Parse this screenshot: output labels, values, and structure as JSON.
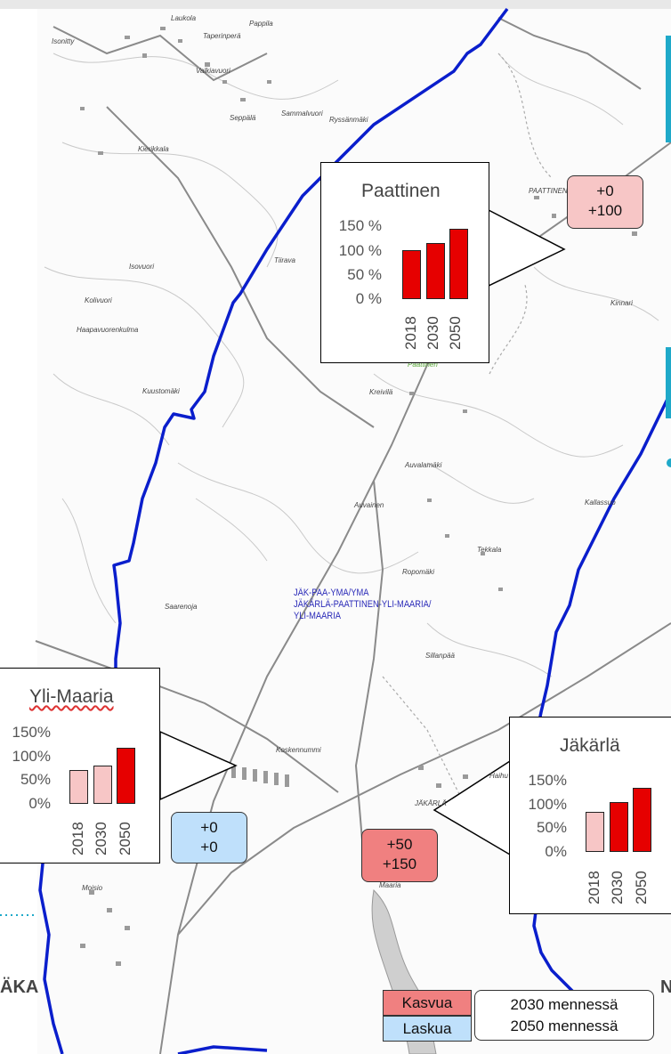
{
  "map": {
    "area_label": "JÄK-PAA-YMA/YMA\nJÄKÄRLÄ-PAATTINEN-YLI-MAARIA/\nYLI-MAARIA",
    "place_names": [
      "Laukola",
      "Taperinperä",
      "Pappila",
      "Isonitty",
      "Valkiavuori",
      "Seppälä",
      "Sammalvuori",
      "Ryssänmäki",
      "Kierikkala",
      "Tiirava",
      "Isovuori",
      "Kolivuori",
      "Haapavuorenkulma",
      "Kuustomäki",
      "Kreivilä",
      "Auvalamäki",
      "Auvainen",
      "Ropomäki",
      "Tekkala",
      "Kallassuo",
      "Saarenoja",
      "Sillanpää",
      "Koskennummi",
      "Maaria",
      "Moisio",
      "Haihu",
      "Kinnari",
      "PAATTINEN",
      "JÄKÄRLÄ",
      "Paattinen"
    ],
    "edge_left": "ÄKA",
    "edge_right": "N"
  },
  "callouts": [
    {
      "name": "Paattinen",
      "yticks": [
        "150 %",
        "100 %",
        "50 %",
        "0 %"
      ],
      "chart_data": {
        "type": "bar",
        "title": "Paattinen",
        "categories": [
          "2018",
          "2030",
          "2050"
        ],
        "values": [
          100,
          116,
          144
        ],
        "ylim": [
          0,
          150
        ],
        "colors": [
          "#e60000",
          "#e60000",
          "#e60000"
        ]
      },
      "change": {
        "line1": "+0",
        "line2": "+100",
        "color": "#f7c6c6"
      }
    },
    {
      "name": "Yli-Maaria",
      "yticks": [
        "150%",
        "100%",
        "50%",
        "0%"
      ],
      "chart_data": {
        "type": "bar",
        "title": "Yli-Maaria",
        "categories": [
          "2018",
          "2030",
          "2050"
        ],
        "values": [
          70,
          78,
          116
        ],
        "ylim": [
          0,
          150
        ],
        "colors": [
          "#f7c6c6",
          "#f7c6c6",
          "#e60000"
        ]
      },
      "change": {
        "line1": "+0",
        "line2": "+0",
        "color": "#bfe0fb"
      }
    },
    {
      "name": "Jäkärlä",
      "yticks": [
        "150%",
        "100%",
        "50%",
        "0%"
      ],
      "chart_data": {
        "type": "bar",
        "title": "Jäkärlä",
        "categories": [
          "2018",
          "2030",
          "2050"
        ],
        "values": [
          83,
          103,
          131
        ],
        "ylim": [
          0,
          150
        ],
        "colors": [
          "#f7c6c6",
          "#e60000",
          "#e60000"
        ]
      },
      "change": {
        "line1": "+50",
        "line2": "+150",
        "color": "#f08080"
      }
    }
  ],
  "legend": {
    "growth_label": "Kasvua",
    "growth_color": "#f08080",
    "decline_label": "Laskua",
    "decline_color": "#bfe0fb",
    "line1": "2030 mennessä",
    "line2": "2050 mennessä"
  },
  "colors": {
    "boundary": "#0a1ecc",
    "roads": "#777777",
    "teal_edge": "#1fa9c9"
  }
}
